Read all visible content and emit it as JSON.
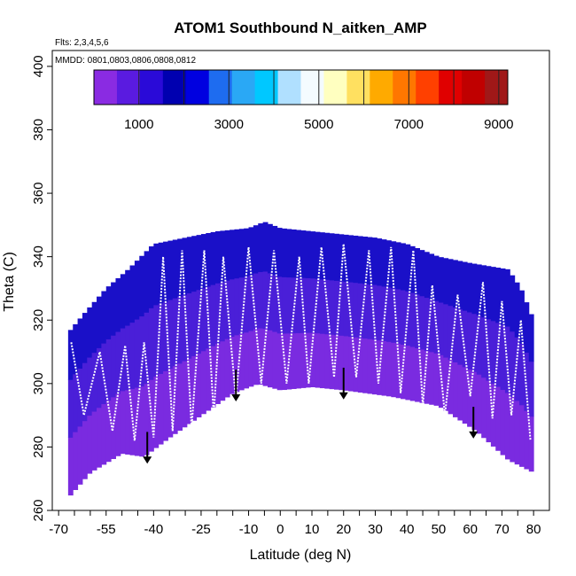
{
  "header": {
    "title": "ATOM1 Southbound N_aitken_AMP",
    "flights_note": "Flts: 2,3,4,5,6",
    "dates_note": "MMDD: 0801,0803,0806,0808,0812"
  },
  "colors": {
    "colorbar": [
      "#8a2be2",
      "#5a1be0",
      "#2a0ad8",
      "#0000b0",
      "#0000e0",
      "#1e6cf0",
      "#2aa8f5",
      "#00c8ff",
      "#b0e0ff",
      "#f4fbff",
      "#ffffc0",
      "#ffe060",
      "#ffaa00",
      "#ff7700",
      "#ff4000",
      "#e00000",
      "#c00000",
      "#a01818"
    ],
    "curtain_low": "#7a2be0",
    "curtain_mid": "#4a1fd8",
    "curtain_high": "#1a10c8",
    "flight_track": "#ffffff",
    "profile_arrow": "#000000"
  },
  "chart_data": {
    "type": "heatmap",
    "title": "ATOM1 Southbound N_aitken_AMP",
    "xlabel": "Latitude (deg N)",
    "ylabel": "Theta (C)",
    "xlim": [
      -72,
      85
    ],
    "ylim": [
      260,
      405
    ],
    "x_ticks": [
      -70,
      -55,
      -40,
      -25,
      -10,
      0,
      10,
      20,
      30,
      40,
      50,
      60,
      70,
      80
    ],
    "y_ticks": [
      260,
      280,
      300,
      320,
      340,
      360,
      380,
      400
    ],
    "colorbar": {
      "range": [
        0,
        9200
      ],
      "ticks": [
        1000,
        3000,
        5000,
        7000,
        9000
      ],
      "boundaries": [
        0,
        1000,
        2000,
        3000,
        4000,
        5000,
        6000,
        7000,
        8000,
        9000
      ]
    },
    "lower_boundary": [
      [
        -67,
        264
      ],
      [
        -60,
        272
      ],
      [
        -50,
        278
      ],
      [
        -43,
        277
      ],
      [
        -35,
        283
      ],
      [
        -25,
        290
      ],
      [
        -15,
        297
      ],
      [
        -7,
        300
      ],
      [
        0,
        298
      ],
      [
        10,
        299
      ],
      [
        20,
        298
      ],
      [
        35,
        296
      ],
      [
        50,
        293
      ],
      [
        62,
        285
      ],
      [
        72,
        276
      ],
      [
        80,
        272
      ]
    ],
    "upper_boundary": [
      [
        -67,
        316
      ],
      [
        -62,
        322
      ],
      [
        -55,
        330
      ],
      [
        -48,
        336
      ],
      [
        -40,
        344
      ],
      [
        -30,
        346
      ],
      [
        -20,
        348
      ],
      [
        -10,
        349
      ],
      [
        -5,
        351
      ],
      [
        0,
        349
      ],
      [
        10,
        348
      ],
      [
        20,
        347
      ],
      [
        30,
        346
      ],
      [
        40,
        344
      ],
      [
        50,
        340
      ],
      [
        60,
        338
      ],
      [
        72,
        336
      ],
      [
        76,
        330
      ],
      [
        80,
        320
      ]
    ],
    "profile_arrows": [
      -42,
      -14,
      20,
      61
    ],
    "flight_track_turnarounds": [
      [
        -66,
        313
      ],
      [
        -62,
        290
      ],
      [
        -57,
        310
      ],
      [
        -53,
        285
      ],
      [
        -49,
        312
      ],
      [
        -46,
        282
      ],
      [
        -43,
        313
      ],
      [
        -40,
        283
      ],
      [
        -37,
        340
      ],
      [
        -34,
        285
      ],
      [
        -31,
        342
      ],
      [
        -28,
        286
      ],
      [
        -24,
        342
      ],
      [
        -21,
        290
      ],
      [
        -18,
        340
      ],
      [
        -14,
        295
      ],
      [
        -10,
        343
      ],
      [
        -6,
        300
      ],
      [
        -2,
        342
      ],
      [
        2,
        300
      ],
      [
        6,
        340
      ],
      [
        9,
        300
      ],
      [
        13,
        343
      ],
      [
        17,
        302
      ],
      [
        20,
        344
      ],
      [
        24,
        302
      ],
      [
        28,
        342
      ],
      [
        31,
        300
      ],
      [
        35,
        343
      ],
      [
        38,
        297
      ],
      [
        42,
        342
      ],
      [
        45,
        293
      ],
      [
        48,
        331
      ],
      [
        52,
        290
      ],
      [
        56,
        328
      ],
      [
        60,
        296
      ],
      [
        64,
        332
      ],
      [
        67,
        289
      ],
      [
        70,
        326
      ],
      [
        73,
        290
      ],
      [
        76,
        320
      ],
      [
        79,
        282
      ]
    ]
  }
}
